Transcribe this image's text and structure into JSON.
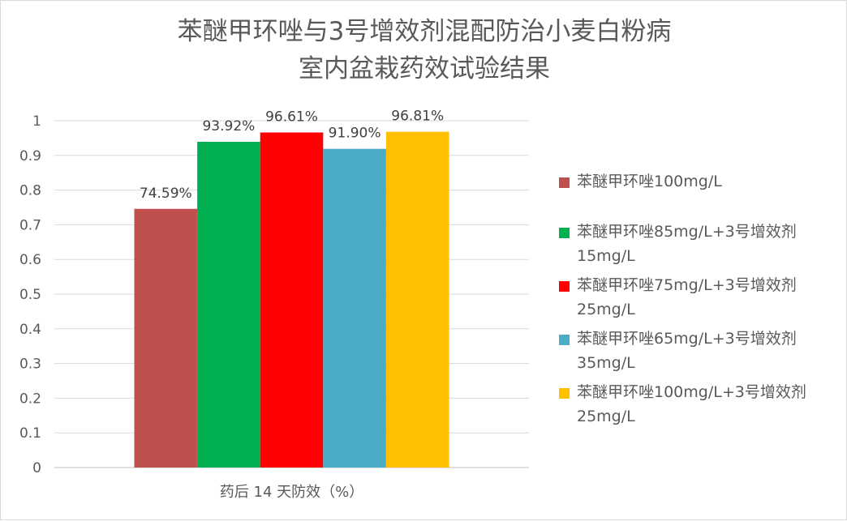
{
  "title_line_1": "苯醚甲环唑与3号增效剂混配防治小麦白粉病",
  "title_line_2": "室内盆栽药效试验结果",
  "chart_data": {
    "type": "bar",
    "title": "苯醚甲环唑与3号增效剂混配防治小麦白粉病 室内盆栽药效试验结果",
    "categories": [
      "药后 14 天防效（%）"
    ],
    "xlabel": "",
    "ylabel": "",
    "ylim": [
      0,
      1
    ],
    "yticks": [
      "0",
      "0.1",
      "0.2",
      "0.3",
      "0.4",
      "0.5",
      "0.6",
      "0.7",
      "0.8",
      "0.9",
      "1"
    ],
    "grid": true,
    "legend_position": "right",
    "series": [
      {
        "name": "苯醚甲环唑100mg/L",
        "values": [
          0.7459
        ],
        "label": "74.59%",
        "color": "#C0504D"
      },
      {
        "name": "苯醚甲环唑85mg/L+3号增效剂15mg/L",
        "values": [
          0.9392
        ],
        "label": "93.92%",
        "color": "#00B050"
      },
      {
        "name": "苯醚甲环唑75mg/L+3号增效剂25mg/L",
        "values": [
          0.9661
        ],
        "label": "96.61%",
        "color": "#FF0000"
      },
      {
        "name": "苯醚甲环唑65mg/L+3号增效剂35mg/L",
        "values": [
          0.919
        ],
        "label": "91.90%",
        "color": "#4BACC6"
      },
      {
        "name": "苯醚甲环唑100mg/L+3号增效剂25mg/L",
        "values": [
          0.9681
        ],
        "label": "96.81%",
        "color": "#FFC000"
      }
    ]
  }
}
